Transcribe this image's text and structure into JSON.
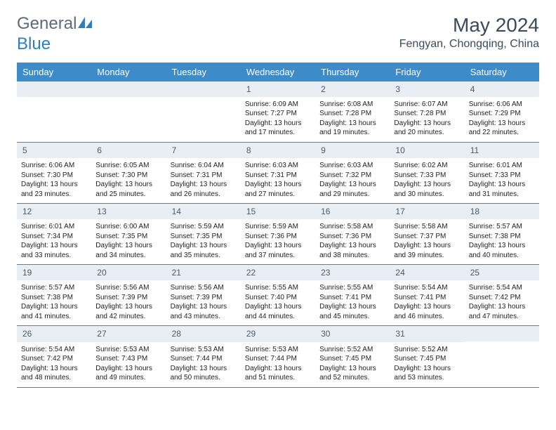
{
  "logo": {
    "text1": "Genera",
    "text2": "l",
    "blue": "Blue"
  },
  "title": "May 2024",
  "location": "Fengyan, Chongqing, China",
  "weekdays": [
    "Sunday",
    "Monday",
    "Tuesday",
    "Wednesday",
    "Thursday",
    "Friday",
    "Saturday"
  ],
  "colors": {
    "header_bg": "#3e8bc9",
    "header_fg": "#ffffff",
    "daynum_bg": "#e8eef3",
    "border": "#6a7a8a",
    "logo_gray": "#5a6b7a",
    "logo_blue": "#2c7fb8"
  },
  "weeks": [
    [
      null,
      null,
      null,
      {
        "n": "1",
        "sr": "6:09 AM",
        "ss": "7:27 PM",
        "dl": "13 hours and 17 minutes."
      },
      {
        "n": "2",
        "sr": "6:08 AM",
        "ss": "7:28 PM",
        "dl": "13 hours and 19 minutes."
      },
      {
        "n": "3",
        "sr": "6:07 AM",
        "ss": "7:28 PM",
        "dl": "13 hours and 20 minutes."
      },
      {
        "n": "4",
        "sr": "6:06 AM",
        "ss": "7:29 PM",
        "dl": "13 hours and 22 minutes."
      }
    ],
    [
      {
        "n": "5",
        "sr": "6:06 AM",
        "ss": "7:30 PM",
        "dl": "13 hours and 23 minutes."
      },
      {
        "n": "6",
        "sr": "6:05 AM",
        "ss": "7:30 PM",
        "dl": "13 hours and 25 minutes."
      },
      {
        "n": "7",
        "sr": "6:04 AM",
        "ss": "7:31 PM",
        "dl": "13 hours and 26 minutes."
      },
      {
        "n": "8",
        "sr": "6:03 AM",
        "ss": "7:31 PM",
        "dl": "13 hours and 27 minutes."
      },
      {
        "n": "9",
        "sr": "6:03 AM",
        "ss": "7:32 PM",
        "dl": "13 hours and 29 minutes."
      },
      {
        "n": "10",
        "sr": "6:02 AM",
        "ss": "7:33 PM",
        "dl": "13 hours and 30 minutes."
      },
      {
        "n": "11",
        "sr": "6:01 AM",
        "ss": "7:33 PM",
        "dl": "13 hours and 31 minutes."
      }
    ],
    [
      {
        "n": "12",
        "sr": "6:01 AM",
        "ss": "7:34 PM",
        "dl": "13 hours and 33 minutes."
      },
      {
        "n": "13",
        "sr": "6:00 AM",
        "ss": "7:35 PM",
        "dl": "13 hours and 34 minutes."
      },
      {
        "n": "14",
        "sr": "5:59 AM",
        "ss": "7:35 PM",
        "dl": "13 hours and 35 minutes."
      },
      {
        "n": "15",
        "sr": "5:59 AM",
        "ss": "7:36 PM",
        "dl": "13 hours and 37 minutes."
      },
      {
        "n": "16",
        "sr": "5:58 AM",
        "ss": "7:36 PM",
        "dl": "13 hours and 38 minutes."
      },
      {
        "n": "17",
        "sr": "5:58 AM",
        "ss": "7:37 PM",
        "dl": "13 hours and 39 minutes."
      },
      {
        "n": "18",
        "sr": "5:57 AM",
        "ss": "7:38 PM",
        "dl": "13 hours and 40 minutes."
      }
    ],
    [
      {
        "n": "19",
        "sr": "5:57 AM",
        "ss": "7:38 PM",
        "dl": "13 hours and 41 minutes."
      },
      {
        "n": "20",
        "sr": "5:56 AM",
        "ss": "7:39 PM",
        "dl": "13 hours and 42 minutes."
      },
      {
        "n": "21",
        "sr": "5:56 AM",
        "ss": "7:39 PM",
        "dl": "13 hours and 43 minutes."
      },
      {
        "n": "22",
        "sr": "5:55 AM",
        "ss": "7:40 PM",
        "dl": "13 hours and 44 minutes."
      },
      {
        "n": "23",
        "sr": "5:55 AM",
        "ss": "7:41 PM",
        "dl": "13 hours and 45 minutes."
      },
      {
        "n": "24",
        "sr": "5:54 AM",
        "ss": "7:41 PM",
        "dl": "13 hours and 46 minutes."
      },
      {
        "n": "25",
        "sr": "5:54 AM",
        "ss": "7:42 PM",
        "dl": "13 hours and 47 minutes."
      }
    ],
    [
      {
        "n": "26",
        "sr": "5:54 AM",
        "ss": "7:42 PM",
        "dl": "13 hours and 48 minutes."
      },
      {
        "n": "27",
        "sr": "5:53 AM",
        "ss": "7:43 PM",
        "dl": "13 hours and 49 minutes."
      },
      {
        "n": "28",
        "sr": "5:53 AM",
        "ss": "7:44 PM",
        "dl": "13 hours and 50 minutes."
      },
      {
        "n": "29",
        "sr": "5:53 AM",
        "ss": "7:44 PM",
        "dl": "13 hours and 51 minutes."
      },
      {
        "n": "30",
        "sr": "5:52 AM",
        "ss": "7:45 PM",
        "dl": "13 hours and 52 minutes."
      },
      {
        "n": "31",
        "sr": "5:52 AM",
        "ss": "7:45 PM",
        "dl": "13 hours and 53 minutes."
      },
      null
    ]
  ],
  "labels": {
    "sunrise": "Sunrise:",
    "sunset": "Sunset:",
    "daylight": "Daylight:"
  }
}
